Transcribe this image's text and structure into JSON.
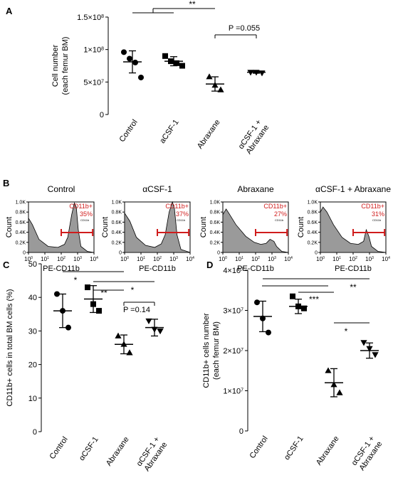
{
  "panel_labels": {
    "a": "A",
    "b": "B",
    "c": "C",
    "d": "D"
  },
  "chart_data": [
    {
      "id": "A",
      "type": "scatter",
      "ylabel_lines": [
        "Cell number",
        "(each femur BM)"
      ],
      "ylim": [
        0,
        150000000
      ],
      "yticks": [
        {
          "value": 0,
          "label": "0"
        },
        {
          "value": 50000000,
          "label": "5×10",
          "exp": "7"
        },
        {
          "value": 100000000,
          "label": "1×10",
          "exp": "8"
        },
        {
          "value": 150000000,
          "label": "1.5×10",
          "exp": "8"
        }
      ],
      "categories": [
        {
          "lines": [
            "Control"
          ]
        },
        {
          "lines": [
            "aCSF-1"
          ]
        },
        {
          "lines": [
            "Abraxane"
          ]
        },
        {
          "lines": [
            "αCSF-1 +",
            "Abraxane"
          ]
        }
      ],
      "series": [
        {
          "marker": "circle",
          "values": [
            96000000,
            86000000,
            80000000,
            57000000
          ],
          "mean": 81000000,
          "sd": 17000000
        },
        {
          "marker": "square",
          "values": [
            90000000,
            82000000,
            79000000,
            75000000
          ],
          "mean": 82000000,
          "sd": 7000000
        },
        {
          "marker": "triangle",
          "values": [
            58000000,
            45000000,
            38000000
          ],
          "mean": 47000000,
          "sd": 11000000
        },
        {
          "marker": "triangle-down",
          "values": [
            65000000,
            65000000,
            64000000
          ],
          "mean": 65000000,
          "sd": 1500000
        }
      ],
      "annotations": [
        {
          "text": "**",
          "from": 0,
          "to": 2,
          "group": [
            0,
            1
          ]
        },
        {
          "text": "P =0.055",
          "from": 2,
          "to": 3
        }
      ]
    },
    {
      "id": "B",
      "type": "area",
      "xlabel": "PE-CD11b",
      "ylabel": "Count",
      "yticks": [
        "0",
        "0.2K",
        "0.4K",
        "0.6K",
        "0.8K",
        "1.0K"
      ],
      "xticks": [
        {
          "base": "10",
          "exp": "0"
        },
        {
          "base": "10",
          "exp": "1"
        },
        {
          "base": "10",
          "exp": "2"
        },
        {
          "base": "10",
          "exp": "3"
        },
        {
          "base": "10",
          "exp": "4"
        }
      ],
      "gate_label": "CD11b+",
      "tiny_label": "CD11b",
      "panels": [
        {
          "title": "Control",
          "percent": "35%"
        },
        {
          "title": "αCSF-1",
          "percent": "37%"
        },
        {
          "title": "Abraxane",
          "percent": "27%"
        },
        {
          "title": "αCSF-1 + Abraxane",
          "percent": "31%"
        }
      ]
    },
    {
      "id": "C",
      "type": "scatter",
      "ylabel": "CD11b+ cells in total BM cells (%)",
      "ylim": [
        0,
        50
      ],
      "yticks": [
        {
          "value": 0,
          "label": "0"
        },
        {
          "value": 10,
          "label": "10"
        },
        {
          "value": 20,
          "label": "20"
        },
        {
          "value": 30,
          "label": "30"
        },
        {
          "value": 40,
          "label": "40"
        },
        {
          "value": 50,
          "label": "50"
        }
      ],
      "categories": [
        {
          "lines": [
            "Control"
          ]
        },
        {
          "lines": [
            "αCSF-1"
          ]
        },
        {
          "lines": [
            "Abraxane"
          ]
        },
        {
          "lines": [
            "αCSF-1 +",
            "Abraxane"
          ]
        }
      ],
      "series": [
        {
          "marker": "circle",
          "values": [
            41,
            36,
            31
          ],
          "mean": 36,
          "sd": 5
        },
        {
          "marker": "square",
          "values": [
            43,
            38,
            36
          ],
          "mean": 39.5,
          "sd": 4
        },
        {
          "marker": "triangle",
          "values": [
            28.5,
            26,
            23.5
          ],
          "mean": 26,
          "sd": 2.8
        },
        {
          "marker": "triangle-down",
          "values": [
            33,
            30.5,
            30
          ],
          "mean": 31,
          "sd": 2.5
        }
      ],
      "annotations": [
        {
          "text": "*",
          "from": 0,
          "to": 2
        },
        {
          "text": "**",
          "from": 1,
          "to": 2
        },
        {
          "text": "*",
          "from": 1,
          "to": 3
        },
        {
          "text": "P =0.14",
          "from": 2,
          "to": 3
        }
      ]
    },
    {
      "id": "D",
      "type": "scatter",
      "ylabel_lines": [
        "CD11b+ cells number",
        "(each femur BM)"
      ],
      "ylim": [
        0,
        40000000
      ],
      "yticks": [
        {
          "value": 0,
          "label": "0"
        },
        {
          "value": 10000000,
          "label": "1×10",
          "exp": "7"
        },
        {
          "value": 20000000,
          "label": "2×10",
          "exp": "7"
        },
        {
          "value": 30000000,
          "label": "3×10",
          "exp": "7"
        },
        {
          "value": 40000000,
          "label": "4×10",
          "exp": "7"
        }
      ],
      "categories": [
        {
          "lines": [
            "Control"
          ]
        },
        {
          "lines": [
            "αCSF-1"
          ]
        },
        {
          "lines": [
            "Abraxane"
          ]
        },
        {
          "lines": [
            "αCSF-1 +",
            "Abraxane"
          ]
        }
      ],
      "series": [
        {
          "marker": "circle",
          "values": [
            32000000,
            28000000,
            24500000
          ],
          "mean": 28500000,
          "sd": 3800000
        },
        {
          "marker": "square",
          "values": [
            33500000,
            31000000,
            30500000
          ],
          "mean": 31000000,
          "sd": 1800000
        },
        {
          "marker": "triangle",
          "values": [
            15000000,
            11500000,
            9500000
          ],
          "mean": 12000000,
          "sd": 3500000
        },
        {
          "marker": "triangle-down",
          "values": [
            22000000,
            20500000,
            19000000
          ],
          "mean": 20000000,
          "sd": 1900000
        }
      ],
      "annotations": [
        {
          "text": "**",
          "from": 0,
          "to": 3
        },
        {
          "text": "***",
          "from": 1,
          "to": 2
        },
        {
          "text": "*",
          "from": 2,
          "to": 3
        }
      ]
    }
  ]
}
